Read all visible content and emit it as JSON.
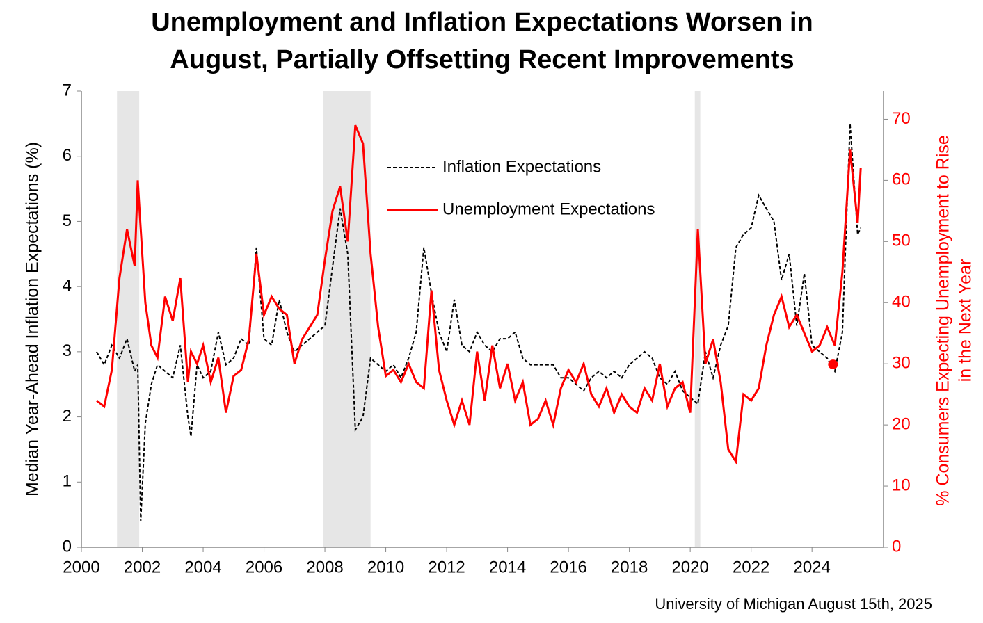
{
  "chart_data": {
    "type": "line",
    "title": [
      "Unemployment and Inflation Expectations Worsen in",
      "August, Partially Offsetting Recent Improvements"
    ],
    "ylabel": "Median Year-Ahead Inflation Expectations (%)",
    "y2label": [
      "% Consumers Expecting Unemployment to Rise",
      "in the Next Year"
    ],
    "source": "University of Michigan August 15th, 2025",
    "xlim": [
      2000,
      2026.35
    ],
    "xticks": [
      2000,
      2002,
      2004,
      2006,
      2008,
      2010,
      2012,
      2014,
      2016,
      2018,
      2020,
      2022,
      2024
    ],
    "ylim": [
      0,
      7
    ],
    "yticks": [
      0,
      1,
      2,
      3,
      4,
      5,
      6,
      7
    ],
    "y2lim": [
      0,
      74.6
    ],
    "y2ticks": [
      0,
      10,
      20,
      30,
      40,
      50,
      60,
      70
    ],
    "recessions": [
      [
        2001.17,
        2001.9
      ],
      [
        2007.95,
        2009.5
      ],
      [
        2020.15,
        2020.33
      ]
    ],
    "x": [
      2000.5,
      2000.75,
      2001,
      2001.25,
      2001.5,
      2001.75,
      2001.85,
      2001.95,
      2002.1,
      2002.3,
      2002.5,
      2002.75,
      2003,
      2003.25,
      2003.5,
      2003.6,
      2003.8,
      2004,
      2004.25,
      2004.5,
      2004.75,
      2005,
      2005.25,
      2005.5,
      2005.75,
      2006,
      2006.25,
      2006.5,
      2006.75,
      2007,
      2007.25,
      2007.5,
      2007.75,
      2008,
      2008.25,
      2008.5,
      2008.75,
      2009,
      2009.25,
      2009.5,
      2009.75,
      2010,
      2010.25,
      2010.5,
      2010.75,
      2011,
      2011.25,
      2011.5,
      2011.75,
      2012,
      2012.25,
      2012.5,
      2012.75,
      2013,
      2013.25,
      2013.5,
      2013.75,
      2014,
      2014.25,
      2014.5,
      2014.75,
      2015,
      2015.25,
      2015.5,
      2015.75,
      2016,
      2016.25,
      2016.5,
      2016.75,
      2017,
      2017.25,
      2017.5,
      2017.75,
      2018,
      2018.25,
      2018.5,
      2018.75,
      2019,
      2019.25,
      2019.5,
      2019.75,
      2020,
      2020.25,
      2020.5,
      2020.75,
      2021,
      2021.25,
      2021.5,
      2021.75,
      2022,
      2022.25,
      2022.5,
      2022.75,
      2023,
      2023.25,
      2023.5,
      2023.75,
      2024,
      2024.25,
      2024.5,
      2024.75,
      2025,
      2025.25,
      2025.5,
      2025.6
    ],
    "series": [
      {
        "name": "Inflation Expectations",
        "color": "#000000",
        "dash": true,
        "values": [
          3.0,
          2.8,
          3.1,
          2.9,
          3.2,
          2.7,
          2.8,
          0.4,
          1.9,
          2.5,
          2.8,
          2.7,
          2.6,
          3.1,
          2.0,
          1.7,
          2.8,
          2.6,
          2.7,
          3.3,
          2.8,
          2.9,
          3.2,
          3.1,
          4.6,
          3.2,
          3.1,
          3.8,
          3.3,
          3.0,
          3.1,
          3.2,
          3.3,
          3.4,
          4.3,
          5.2,
          4.5,
          1.8,
          2.0,
          2.9,
          2.8,
          2.7,
          2.8,
          2.6,
          2.9,
          3.3,
          4.6,
          3.9,
          3.3,
          3.0,
          3.8,
          3.1,
          3.0,
          3.3,
          3.1,
          3.0,
          3.2,
          3.2,
          3.3,
          2.9,
          2.8,
          2.8,
          2.8,
          2.8,
          2.6,
          2.6,
          2.5,
          2.4,
          2.6,
          2.7,
          2.6,
          2.7,
          2.6,
          2.8,
          2.9,
          3.0,
          2.9,
          2.6,
          2.5,
          2.7,
          2.4,
          2.3,
          2.2,
          3.0,
          2.6,
          3.1,
          3.4,
          4.6,
          4.8,
          4.9,
          5.4,
          5.2,
          5.0,
          4.1,
          4.5,
          3.4,
          4.2,
          3.1,
          3.0,
          2.9,
          2.7,
          3.3,
          6.5,
          4.8,
          4.9
        ]
      },
      {
        "name": "Unemployment Expectations",
        "color": "#ff0000",
        "axis": "y2",
        "values": [
          24,
          23,
          29,
          44,
          52,
          46,
          60,
          52,
          40,
          33,
          31,
          41,
          37,
          44,
          27,
          32,
          30,
          33,
          27,
          31,
          22,
          28,
          29,
          34,
          48,
          38,
          41,
          39,
          38,
          30,
          34,
          36,
          38,
          47,
          55,
          59,
          50,
          69,
          66,
          48,
          36,
          28,
          29,
          27,
          30,
          27,
          26,
          42,
          29,
          24,
          20,
          24,
          20,
          32,
          24,
          33,
          26,
          30,
          24,
          27,
          20,
          21,
          24,
          20,
          26,
          29,
          27,
          30,
          25,
          23,
          26,
          22,
          25,
          23,
          22,
          26,
          24,
          30,
          23,
          26,
          27,
          22,
          52,
          30,
          34,
          27,
          16,
          14,
          25,
          24,
          26,
          33,
          38,
          41,
          36,
          38,
          35,
          32,
          33,
          36,
          33,
          45,
          65,
          53,
          62
        ]
      }
    ],
    "highlight_point": {
      "x": 2024.69,
      "y": 29.9,
      "color": "#ff0000",
      "axis": "y2"
    },
    "legend": "upper-center"
  }
}
